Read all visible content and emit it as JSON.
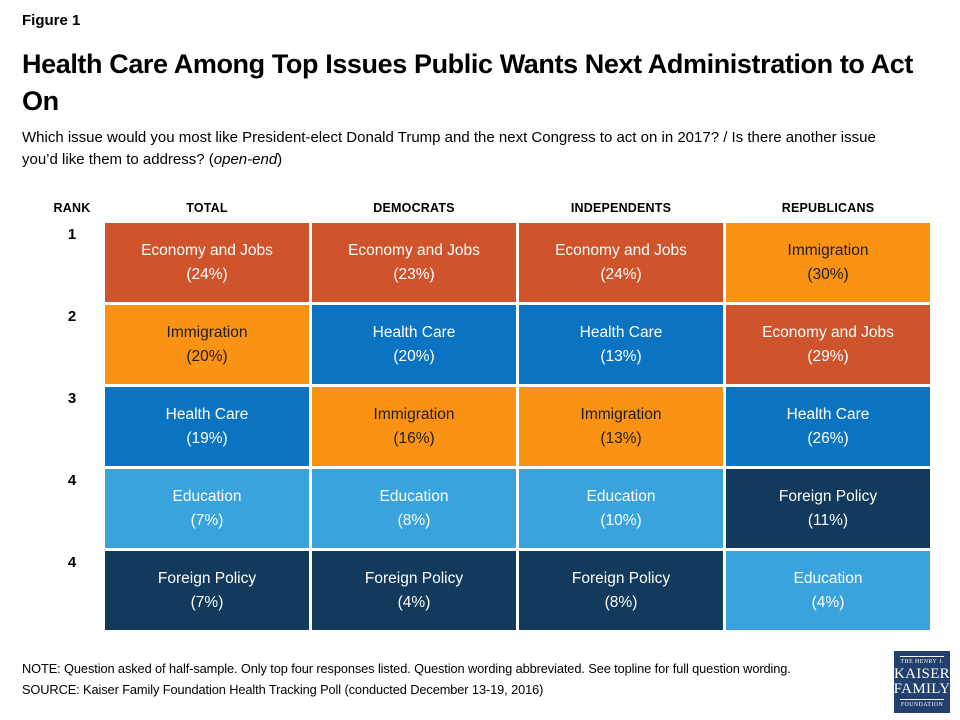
{
  "figure_label": "Figure 1",
  "title": "Health Care Among Top Issues Public Wants Next Administration to Act On",
  "subtitle": {
    "text": "Which issue would you most like President-elect Donald Trump and the next Congress to act on in 2017? / Is there another issue you’d like them to address? (",
    "italic": "open-end",
    "suffix": ")"
  },
  "table": {
    "headers": [
      "RANK",
      "TOTAL",
      "DEMOCRATS",
      "INDEPENDENTS",
      "REPUBLICANS"
    ]
  },
  "chart_data": {
    "type": "table",
    "title": "Health Care Among Top Issues Public Wants Next Administration to Act On",
    "columns": [
      "TOTAL",
      "DEMOCRATS",
      "INDEPENDENTS",
      "REPUBLICANS"
    ],
    "ranks": [
      "1",
      "2",
      "3",
      "4",
      "4"
    ],
    "cells": [
      [
        {
          "issue": "Economy and Jobs",
          "percent": 24,
          "label": "(24%)"
        },
        {
          "issue": "Economy and Jobs",
          "percent": 23,
          "label": "(23%)"
        },
        {
          "issue": "Economy and Jobs",
          "percent": 24,
          "label": "(24%)"
        },
        {
          "issue": "Immigration",
          "percent": 30,
          "label": "(30%)"
        }
      ],
      [
        {
          "issue": "Immigration",
          "percent": 20,
          "label": "(20%)"
        },
        {
          "issue": "Health Care",
          "percent": 20,
          "label": "(20%)"
        },
        {
          "issue": "Health Care",
          "percent": 13,
          "label": "(13%)"
        },
        {
          "issue": "Economy and Jobs",
          "percent": 29,
          "label": "(29%)"
        }
      ],
      [
        {
          "issue": "Health Care",
          "percent": 19,
          "label": "(19%)"
        },
        {
          "issue": "Immigration",
          "percent": 16,
          "label": "(16%)"
        },
        {
          "issue": "Immigration",
          "percent": 13,
          "label": "(13%)"
        },
        {
          "issue": "Health Care",
          "percent": 26,
          "label": "(26%)"
        }
      ],
      [
        {
          "issue": "Education",
          "percent": 7,
          "label": "(7%)"
        },
        {
          "issue": "Education",
          "percent": 8,
          "label": "(8%)"
        },
        {
          "issue": "Education",
          "percent": 10,
          "label": "(10%)"
        },
        {
          "issue": "Foreign Policy",
          "percent": 11,
          "label": "(11%)"
        }
      ],
      [
        {
          "issue": "Foreign Policy",
          "percent": 7,
          "label": "(7%)"
        },
        {
          "issue": "Foreign Policy",
          "percent": 4,
          "label": "(4%)"
        },
        {
          "issue": "Foreign Policy",
          "percent": 8,
          "label": "(8%)"
        },
        {
          "issue": "Education",
          "percent": 4,
          "label": "(4%)"
        }
      ]
    ],
    "issue_colors": {
      "Economy and Jobs": "#D0542B",
      "Immigration": "#FA9214",
      "Health Care": "#0B74C2",
      "Education": "#38A3DD",
      "Foreign Policy": "#113A5C"
    },
    "issue_text_colors": {
      "Immigration": "#1E1E1E"
    },
    "default_cell_text_color": "#FFFFFF"
  },
  "note": "NOTE: Question asked of half-sample. Only top four responses listed. Question wording abbreviated. See topline for full question wording.",
  "source": "SOURCE: Kaiser Family Foundation Health Tracking Poll (conducted December 13-19, 2016)",
  "logo": {
    "line1": "THE HENRY J.",
    "line2": "KAISER",
    "line3": "FAMILY",
    "line4": "FOUNDATION"
  }
}
